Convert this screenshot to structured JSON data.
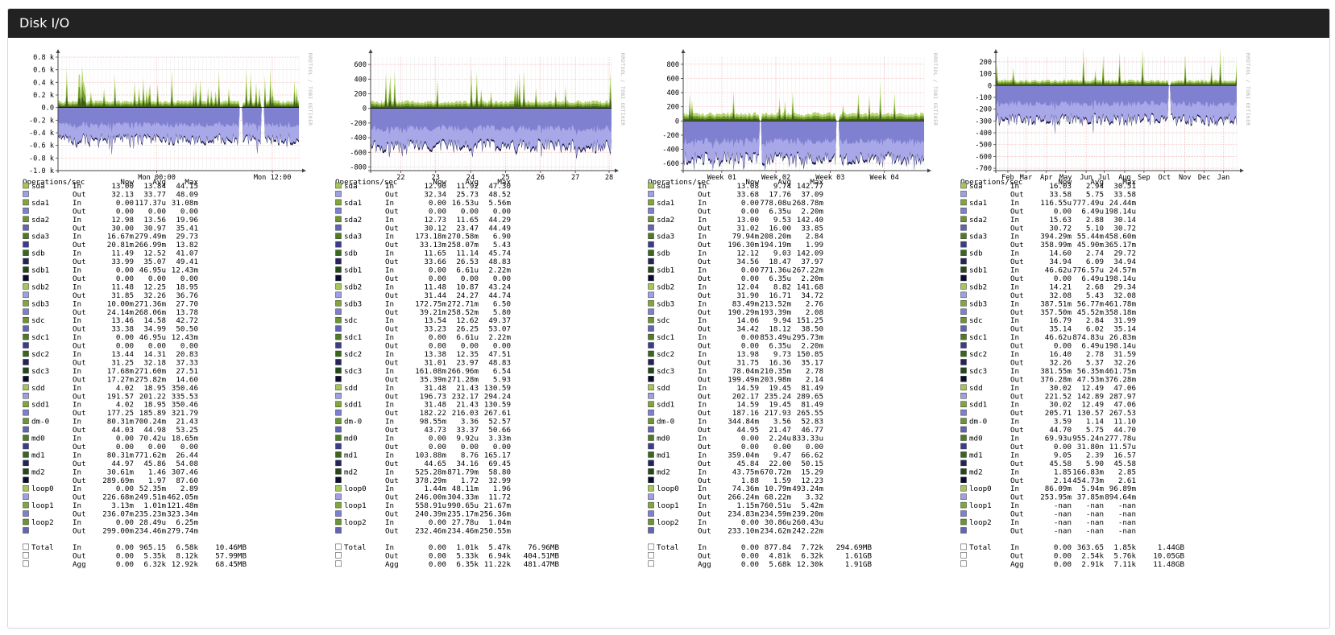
{
  "page": {
    "title": "Disk I/O"
  },
  "watermark": "RRDTOOL / TOBI OETIKER",
  "legend_header": {
    "label": "Operations/sec",
    "now": "Now",
    "avg": "Avg",
    "max": "Max"
  },
  "colors": {
    "plot_bg": "#ffffff",
    "grid_minor": "#ececec",
    "grid_major": "#f2b6b6",
    "in_dark": "#3d5c1a",
    "in_mid": "#6f9a2c",
    "in_light": "#b5d56a",
    "out_light": "#a8a8e8",
    "out_mid": "#8080d0",
    "out_dark": "#1a1a48"
  },
  "devices": [
    {
      "name": "sda",
      "in_color": "#a4c65a",
      "out_color": "#a0a0e0"
    },
    {
      "name": "sda1",
      "in_color": "#7fa73a",
      "out_color": "#7f7fcf"
    },
    {
      "name": "sda2",
      "in_color": "#6b9530",
      "out_color": "#6464b4"
    },
    {
      "name": "sda3",
      "in_color": "#4f7a26",
      "out_color": "#3c3c8c"
    },
    {
      "name": "sdb",
      "in_color": "#3a6620",
      "out_color": "#24245c"
    },
    {
      "name": "sdb1",
      "in_color": "#24481a",
      "out_color": "#0c0c30"
    },
    {
      "name": "sdb2",
      "in_color": "#a4c65a",
      "out_color": "#a0a0e0"
    },
    {
      "name": "sdb3",
      "in_color": "#7fa73a",
      "out_color": "#7f7fcf"
    },
    {
      "name": "sdc",
      "in_color": "#6b9530",
      "out_color": "#6464b4"
    },
    {
      "name": "sdc1",
      "in_color": "#4f7a26",
      "out_color": "#3c3c8c"
    },
    {
      "name": "sdc2",
      "in_color": "#3a6620",
      "out_color": "#24245c"
    },
    {
      "name": "sdc3",
      "in_color": "#24481a",
      "out_color": "#0c0c30"
    },
    {
      "name": "sdd",
      "in_color": "#a4c65a",
      "out_color": "#a0a0e0"
    },
    {
      "name": "sdd1",
      "in_color": "#7fa73a",
      "out_color": "#7f7fcf"
    },
    {
      "name": "dm-0",
      "in_color": "#6b9530",
      "out_color": "#6464b4"
    },
    {
      "name": "md0",
      "in_color": "#4f7a26",
      "out_color": "#3c3c8c"
    },
    {
      "name": "md1",
      "in_color": "#3a6620",
      "out_color": "#24245c"
    },
    {
      "name": "md2",
      "in_color": "#24481a",
      "out_color": "#0c0c30"
    },
    {
      "name": "loop0",
      "in_color": "#a4c65a",
      "out_color": "#a0a0e0"
    },
    {
      "name": "loop1",
      "in_color": "#7fa73a",
      "out_color": "#7f7fcf"
    },
    {
      "name": "loop2",
      "in_color": "#6b9530",
      "out_color": "#6464b4"
    }
  ],
  "graphs": [
    {
      "period": "day",
      "y_ticks": [
        "0.8 k",
        "0.6 k",
        "0.4 k",
        "0.2 k",
        "0.0",
        "-0.2 k",
        "-0.4 k",
        "-0.6 k",
        "-0.8 k",
        "-1.0 k"
      ],
      "y_values": [
        800,
        600,
        400,
        200,
        0,
        -200,
        -400,
        -600,
        -800,
        -1000
      ],
      "ylim": [
        -1000,
        800
      ],
      "x_ticks": [
        {
          "label": "Mon 00:00",
          "pos": 0.41
        },
        {
          "label": "Mon 12:00",
          "pos": 0.89
        }
      ],
      "in_scale": 0.055,
      "out_scale": 0.28,
      "spike_rate": 0.12,
      "gaps": [
        0.76,
        0.85
      ],
      "rows": [
        [
          "13.00",
          "13.84",
          "44.15",
          "32.13",
          "33.77",
          "48.09"
        ],
        [
          "0.00",
          "117.37u",
          "31.08m",
          "0.00",
          "0.00",
          "0.00"
        ],
        [
          "12.98",
          "13.56",
          "19.96",
          "30.00",
          "30.97",
          "35.41"
        ],
        [
          "16.67m",
          "279.49m",
          "29.73",
          "20.81m",
          "266.99m",
          "13.82"
        ],
        [
          "11.49",
          "12.52",
          "41.07",
          "33.99",
          "35.07",
          "49.41"
        ],
        [
          "0.00",
          "46.95u",
          "12.43m",
          "0.00",
          "0.00",
          "0.00"
        ],
        [
          "11.48",
          "12.25",
          "18.95",
          "31.85",
          "32.26",
          "36.76"
        ],
        [
          "10.00m",
          "271.36m",
          "27.70",
          "24.14m",
          "268.06m",
          "13.78"
        ],
        [
          "13.46",
          "14.58",
          "42.72",
          "33.38",
          "34.99",
          "50.50"
        ],
        [
          "0.00",
          "46.95u",
          "12.43m",
          "0.00",
          "0.00",
          "0.00"
        ],
        [
          "13.44",
          "14.31",
          "20.83",
          "31.25",
          "32.18",
          "37.33"
        ],
        [
          "17.68m",
          "271.60m",
          "27.51",
          "17.27m",
          "275.82m",
          "14.60"
        ],
        [
          "4.02",
          "18.95",
          "350.46",
          "191.57",
          "201.22",
          "335.53"
        ],
        [
          "4.02",
          "18.95",
          "350.46",
          "177.25",
          "185.89",
          "321.79"
        ],
        [
          "80.31m",
          "700.24m",
          "21.43",
          "44.03",
          "44.98",
          "53.25"
        ],
        [
          "0.00",
          "70.42u",
          "18.65m",
          "0.00",
          "0.00",
          "0.00"
        ],
        [
          "80.31m",
          "771.62m",
          "26.44",
          "44.97",
          "45.86",
          "54.08"
        ],
        [
          "30.61m",
          "1.46",
          "307.46",
          "289.69m",
          "1.97",
          "87.60"
        ],
        [
          "0.00",
          "52.35m",
          "2.89",
          "226.68m",
          "249.51m",
          "462.05m"
        ],
        [
          "3.13m",
          "1.01m",
          "121.48m",
          "236.07m",
          "235.23m",
          "323.34m"
        ],
        [
          "0.00",
          "28.49u",
          "6.25m",
          "299.00m",
          "234.46m",
          "279.74m"
        ]
      ],
      "totals": [
        [
          "In",
          "0.00",
          "965.15",
          "6.58k",
          "10.46MB"
        ],
        [
          "Out",
          "0.00",
          "5.35k",
          "8.12k",
          "57.99MB"
        ],
        [
          "Agg",
          "0.00",
          "6.32k",
          "12.92k",
          "68.45MB"
        ]
      ]
    },
    {
      "period": "week",
      "y_ticks": [
        "600",
        "400",
        "200",
        "0",
        "-200",
        "-400",
        "-600",
        "-800"
      ],
      "y_values": [
        600,
        400,
        200,
        0,
        -200,
        -400,
        -600,
        -800
      ],
      "ylim": [
        -850,
        700
      ],
      "x_ticks": [
        {
          "label": "22",
          "pos": 0.125
        },
        {
          "label": "23",
          "pos": 0.27
        },
        {
          "label": "24",
          "pos": 0.415
        },
        {
          "label": "25",
          "pos": 0.56
        },
        {
          "label": "26",
          "pos": 0.705
        },
        {
          "label": "27",
          "pos": 0.85
        },
        {
          "label": "28",
          "pos": 0.99
        }
      ],
      "in_scale": 0.06,
      "out_scale": 0.33,
      "spike_rate": 0.1,
      "gaps": [],
      "rows": [
        [
          "12.90",
          "11.92",
          "47.30",
          "32.34",
          "25.73",
          "48.52"
        ],
        [
          "0.00",
          "16.53u",
          "5.56m",
          "0.00",
          "0.00",
          "0.00"
        ],
        [
          "12.73",
          "11.65",
          "44.29",
          "30.12",
          "23.47",
          "44.49"
        ],
        [
          "173.18m",
          "270.58m",
          "6.90",
          "33.13m",
          "258.07m",
          "5.43"
        ],
        [
          "11.65",
          "11.14",
          "45.74",
          "33.66",
          "26.53",
          "48.83"
        ],
        [
          "0.00",
          "6.61u",
          "2.22m",
          "0.00",
          "0.00",
          "0.00"
        ],
        [
          "11.48",
          "10.87",
          "43.24",
          "31.44",
          "24.27",
          "44.74"
        ],
        [
          "172.75m",
          "272.71m",
          "6.50",
          "39.21m",
          "258.52m",
          "5.80"
        ],
        [
          "13.54",
          "12.62",
          "49.37",
          "33.23",
          "26.25",
          "53.07"
        ],
        [
          "0.00",
          "6.61u",
          "2.22m",
          "0.00",
          "0.00",
          "0.00"
        ],
        [
          "13.38",
          "12.35",
          "47.51",
          "31.01",
          "23.97",
          "48.83"
        ],
        [
          "161.08m",
          "266.96m",
          "6.54",
          "35.39m",
          "271.28m",
          "5.93"
        ],
        [
          "31.48",
          "21.43",
          "130.59",
          "196.73",
          "232.17",
          "294.24"
        ],
        [
          "31.48",
          "21.43",
          "130.59",
          "182.22",
          "216.03",
          "267.61"
        ],
        [
          "98.55m",
          "3.36",
          "52.57",
          "43.73",
          "33.37",
          "50.66"
        ],
        [
          "0.00",
          "9.92u",
          "3.33m",
          "0.00",
          "0.00",
          "0.00"
        ],
        [
          "103.88m",
          "8.76",
          "165.17",
          "44.65",
          "34.16",
          "69.45"
        ],
        [
          "525.28m",
          "871.79m",
          "58.80",
          "378.29m",
          "1.72",
          "32.99"
        ],
        [
          "1.44m",
          "48.11m",
          "1.96",
          "246.00m",
          "304.33m",
          "11.72"
        ],
        [
          "558.91u",
          "990.65u",
          "21.67m",
          "240.39m",
          "235.17m",
          "256.36m"
        ],
        [
          "0.00",
          "27.78u",
          "1.04m",
          "232.46m",
          "234.46m",
          "250.55m"
        ]
      ],
      "totals": [
        [
          "In",
          "0.00",
          "1.01k",
          "5.47k",
          "76.96MB"
        ],
        [
          "Out",
          "0.00",
          "5.33k",
          "6.94k",
          "404.51MB"
        ],
        [
          "Agg",
          "0.00",
          "6.35k",
          "11.22k",
          "481.47MB"
        ]
      ]
    },
    {
      "period": "month",
      "y_ticks": [
        "800",
        "600",
        "400",
        "200",
        "0",
        "-200",
        "-400",
        "-600"
      ],
      "y_values": [
        800,
        600,
        400,
        200,
        0,
        -200,
        -400,
        -600
      ],
      "ylim": [
        -700,
        900
      ],
      "x_ticks": [
        {
          "label": "Week 01",
          "pos": 0.16
        },
        {
          "label": "Week 02",
          "pos": 0.385
        },
        {
          "label": "Week 03",
          "pos": 0.61
        },
        {
          "label": "Week 04",
          "pos": 0.835
        }
      ],
      "in_scale": 0.065,
      "out_scale": 0.33,
      "spike_rate": 0.06,
      "gaps": [
        0.32,
        0.64
      ],
      "rows": [
        [
          "13.08",
          "9.74",
          "142.77",
          "33.68",
          "17.76",
          "37.09"
        ],
        [
          "0.00",
          "778.08u",
          "268.78m",
          "0.00",
          "6.35u",
          "2.20m"
        ],
        [
          "13.00",
          "9.53",
          "142.40",
          "31.02",
          "16.00",
          "33.85"
        ],
        [
          "79.94m",
          "208.20m",
          "2.84",
          "196.30m",
          "194.19m",
          "1.99"
        ],
        [
          "12.12",
          "9.03",
          "142.09",
          "34.56",
          "18.47",
          "37.97"
        ],
        [
          "0.00",
          "771.36u",
          "267.22m",
          "0.00",
          "6.35u",
          "2.20m"
        ],
        [
          "12.04",
          "8.82",
          "141.68",
          "31.90",
          "16.71",
          "34.72"
        ],
        [
          "83.49m",
          "213.52m",
          "2.76",
          "190.29m",
          "193.39m",
          "2.08"
        ],
        [
          "14.06",
          "9.94",
          "151.25",
          "34.42",
          "18.12",
          "38.50"
        ],
        [
          "0.00",
          "853.49u",
          "295.73m",
          "0.00",
          "6.35u",
          "2.20m"
        ],
        [
          "13.98",
          "9.73",
          "150.85",
          "31.75",
          "16.36",
          "35.17"
        ],
        [
          "78.04m",
          "210.35m",
          "2.78",
          "199.49m",
          "203.98m",
          "2.14"
        ],
        [
          "14.59",
          "19.45",
          "81.49",
          "202.17",
          "235.24",
          "289.65"
        ],
        [
          "14.59",
          "19.45",
          "81.49",
          "187.16",
          "217.93",
          "265.55"
        ],
        [
          "344.84m",
          "3.56",
          "52.83",
          "44.95",
          "21.47",
          "46.77"
        ],
        [
          "0.00",
          "2.24u",
          "833.33u",
          "0.00",
          "0.00",
          "0.00"
        ],
        [
          "359.04m",
          "9.47",
          "66.62",
          "45.84",
          "22.00",
          "50.15"
        ],
        [
          "43.75m",
          "670.72m",
          "15.29",
          "1.88",
          "1.59",
          "12.23"
        ],
        [
          "74.36m",
          "10.79m",
          "493.24m",
          "266.24m",
          "68.22m",
          "3.32"
        ],
        [
          "1.15m",
          "760.51u",
          "5.42m",
          "234.83m",
          "234.59m",
          "239.20m"
        ],
        [
          "0.00",
          "30.86u",
          "260.43u",
          "233.10m",
          "234.62m",
          "242.22m"
        ]
      ],
      "totals": [
        [
          "In",
          "0.00",
          "877.84",
          "7.72k",
          "294.69MB"
        ],
        [
          "Out",
          "0.00",
          "4.81k",
          "6.32k",
          "1.61GB"
        ],
        [
          "Agg",
          "0.00",
          "5.68k",
          "12.30k",
          "1.91GB"
        ]
      ]
    },
    {
      "period": "year",
      "y_ticks": [
        "200",
        "100",
        "0",
        "-100",
        "-200",
        "-300",
        "-400",
        "-500",
        "-600",
        "-700"
      ],
      "y_values": [
        200,
        100,
        0,
        -100,
        -200,
        -300,
        -400,
        -500,
        -600,
        -700
      ],
      "ylim": [
        -720,
        240
      ],
      "x_ticks": [
        {
          "label": "Feb",
          "pos": 0.05
        },
        {
          "label": "Mar",
          "pos": 0.125
        },
        {
          "label": "Apr",
          "pos": 0.21
        },
        {
          "label": "May",
          "pos": 0.29
        },
        {
          "label": "Jun",
          "pos": 0.375
        },
        {
          "label": "Jul",
          "pos": 0.45
        },
        {
          "label": "Aug",
          "pos": 0.535
        },
        {
          "label": "Sep",
          "pos": 0.615
        },
        {
          "label": "Oct",
          "pos": 0.7
        },
        {
          "label": "Nov",
          "pos": 0.785
        },
        {
          "label": "Dec",
          "pos": 0.865
        },
        {
          "label": "Jan",
          "pos": 0.945
        }
      ],
      "in_scale": 0.045,
      "out_scale": 0.3,
      "spike_rate": 0.05,
      "gaps": [
        0.72
      ],
      "rows": [
        [
          "16.03",
          "2.94",
          "30.51",
          "33.58",
          "5.75",
          "33.58"
        ],
        [
          "116.55u",
          "777.49u",
          "24.44m",
          "0.00",
          "6.49u",
          "198.14u"
        ],
        [
          "15.63",
          "2.88",
          "30.14",
          "30.72",
          "5.10",
          "30.72"
        ],
        [
          "394.29m",
          "55.44m",
          "458.60m",
          "358.99m",
          "45.90m",
          "365.17m"
        ],
        [
          "14.60",
          "2.74",
          "29.72",
          "34.94",
          "6.09",
          "34.94"
        ],
        [
          "46.62u",
          "776.57u",
          "24.57m",
          "0.00",
          "6.49u",
          "198.14u"
        ],
        [
          "14.21",
          "2.68",
          "29.34",
          "32.08",
          "5.43",
          "32.08"
        ],
        [
          "387.51m",
          "56.77m",
          "461.78m",
          "357.50m",
          "45.52m",
          "358.18m"
        ],
        [
          "16.79",
          "2.84",
          "31.99",
          "35.14",
          "6.02",
          "35.14"
        ],
        [
          "46.62u",
          "874.83u",
          "26.83m",
          "0.00",
          "6.49u",
          "198.14u"
        ],
        [
          "16.40",
          "2.78",
          "31.59",
          "32.26",
          "5.37",
          "32.26"
        ],
        [
          "381.55m",
          "56.35m",
          "461.75m",
          "376.28m",
          "47.53m",
          "376.28m"
        ],
        [
          "30.02",
          "12.49",
          "47.06",
          "221.52",
          "142.89",
          "287.97"
        ],
        [
          "30.02",
          "12.49",
          "47.06",
          "205.71",
          "130.57",
          "267.53"
        ],
        [
          "3.59",
          "1.14",
          "11.10",
          "44.70",
          "5.75",
          "44.70"
        ],
        [
          "69.93u",
          "955.24n",
          "277.78u",
          "0.00",
          "31.80n",
          "11.57u"
        ],
        [
          "9.05",
          "2.39",
          "16.57",
          "45.58",
          "5.90",
          "45.58"
        ],
        [
          "1.85",
          "166.83m",
          "2.85",
          "2.14",
          "454.73m",
          "2.61"
        ],
        [
          "86.09m",
          "5.94m",
          "96.89m",
          "253.95m",
          "37.85m",
          "894.64m"
        ],
        [
          "-nan",
          "-nan",
          "-nan",
          "-nan",
          "-nan",
          "-nan"
        ],
        [
          "-nan",
          "-nan",
          "-nan",
          "-nan",
          "-nan",
          "-nan"
        ]
      ],
      "totals": [
        [
          "In",
          "0.00",
          "363.65",
          "1.85k",
          "1.44GB"
        ],
        [
          "Out",
          "0.00",
          "2.54k",
          "5.76k",
          "10.05GB"
        ],
        [
          "Agg",
          "0.00",
          "2.91k",
          "7.11k",
          "11.48GB"
        ]
      ]
    }
  ]
}
